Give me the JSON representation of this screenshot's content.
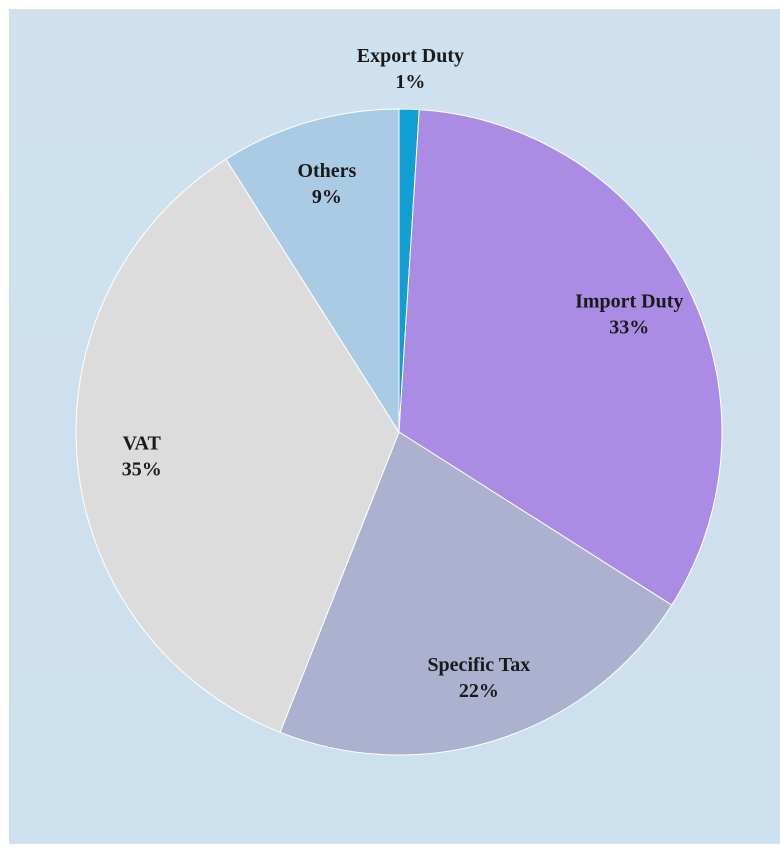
{
  "chart_data": {
    "type": "pie",
    "categories": [
      "Export Duty",
      "Import Duty",
      "Specific Tax",
      "VAT",
      "Others"
    ],
    "values": [
      1,
      33,
      22,
      35,
      9
    ],
    "value_labels": [
      "1%",
      "33%",
      "22%",
      "35%",
      "9%"
    ],
    "colors": [
      "#109fd2",
      "#ab8ce4",
      "#abb1cf",
      "#dcdcdc",
      "#a9cbe3"
    ]
  }
}
